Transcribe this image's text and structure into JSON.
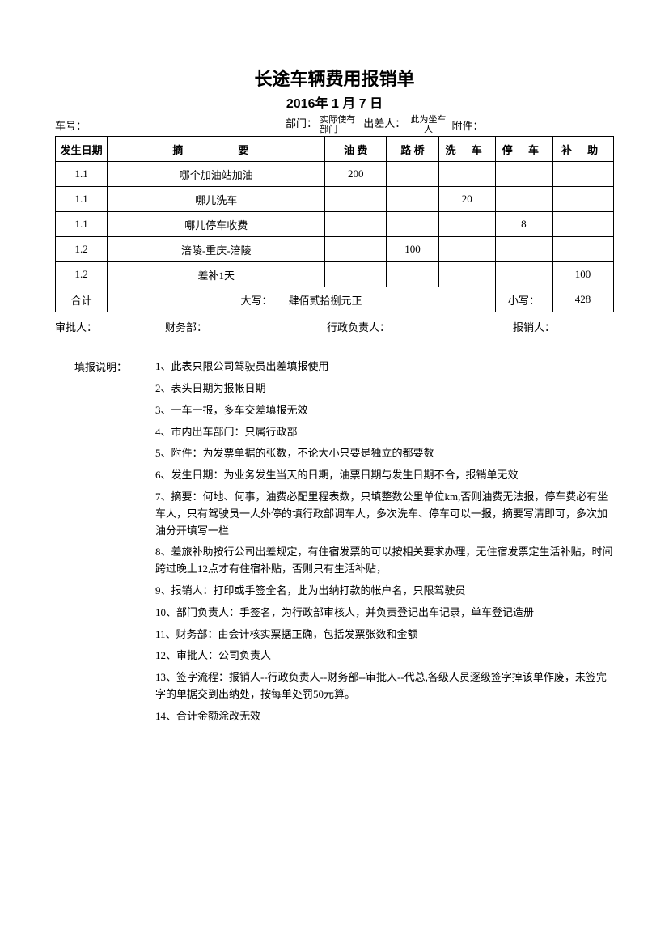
{
  "title": "长途车辆费用报销单",
  "date": "2016年 1 月 7 日",
  "header": {
    "car_label": "车号：",
    "dept_label": "部门：",
    "dept_value": "实际使有部门",
    "trip_label": "出差人：",
    "trip_value": "此为坐车人",
    "att_label": "附件："
  },
  "columns": {
    "date": "发生日期",
    "desc": "摘　　要",
    "fuel": "油 费",
    "toll": "路 桥",
    "wash": "洗 车",
    "park": "停 车",
    "sub": "补 助"
  },
  "rows": [
    {
      "date": "1.1",
      "desc": "哪个加油站加油",
      "fuel": "200",
      "toll": "",
      "wash": "",
      "park": "",
      "sub": ""
    },
    {
      "date": "1.1",
      "desc": "哪儿洗车",
      "fuel": "",
      "toll": "",
      "wash": "20",
      "park": "",
      "sub": ""
    },
    {
      "date": "1.1",
      "desc": "哪儿停车收费",
      "fuel": "",
      "toll": "",
      "wash": "",
      "park": "8",
      "sub": ""
    },
    {
      "date": "1.2",
      "desc": "涪陵-重庆-涪陵",
      "fuel": "",
      "toll": "100",
      "wash": "",
      "park": "",
      "sub": ""
    },
    {
      "date": "1.2",
      "desc": "差补1天",
      "fuel": "",
      "toll": "",
      "wash": "",
      "park": "",
      "sub": "100"
    }
  ],
  "total": {
    "heji": "合计",
    "daxie_label": "大写：",
    "daxie_value": "肆佰贰拾捌元正",
    "xiaoxie_label": "小写：",
    "xiaoxie_value": "428"
  },
  "sign": {
    "approver": "审批人：",
    "finance": "财务部：",
    "admin": "行政负责人：",
    "reimburser": "报销人："
  },
  "instr_label": "填报说明：",
  "instructions": [
    "1、此表只限公司驾驶员出差填报使用",
    "2、表头日期为报帐日期",
    "3、一车一报，多车交差填报无效",
    "4、市内出车部门：只属行政部",
    "5、附件：为发票单据的张数，不论大小只要是独立的都要数",
    "6、发生日期：为业务发生当天的日期，油票日期与发生日期不合，报销单无效",
    "7、摘要：何地、何事，油费必配里程表数，只填整数公里单位km,否则油费无法报，停车费必有坐车人，只有驾驶员一人外停的填行政部调车人，多次洗车、停车可以一报，摘要写清即可，多次加油分开填写一栏",
    "8、差旅补助按行公司出差规定，有住宿发票的可以按相关要求办理，无住宿发票定生活补贴，时间跨过晚上12点才有住宿补贴，否则只有生活补贴，",
    "9、报销人：打印或手签全名，此为出纳打款的帐户名，只限驾驶员",
    "10、部门负责人：手签名，为行政部审核人，并负责登记出车记录，单车登记造册",
    "11、财务部：由会计核实票据正确，包括发票张数和金额",
    "12、审批人：公司负责人",
    "13、签字流程：报销人--行政负责人--财务部--审批人--代总,各级人员逐级签字掉该单作废，未签完字的单据交到出纳处，按每单处罚50元算。",
    "14、合计金额涂改无效"
  ],
  "style": {
    "page_bg": "#ffffff",
    "text_color": "#000000",
    "border_color": "#000000",
    "title_fontsize": 22,
    "date_fontsize": 16,
    "body_fontsize": 13
  }
}
